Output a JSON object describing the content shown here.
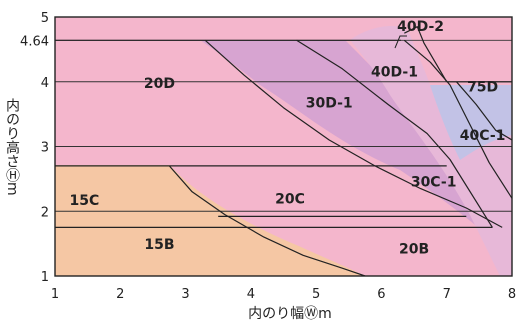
{
  "chart_data": {
    "type": "area",
    "xlabel": "内のり幅Ⓦm",
    "ylabel": "内のり高さⒽm",
    "xlim": [
      1,
      8
    ],
    "ylim": [
      1,
      5
    ],
    "x_ticks": [
      "1",
      "2",
      "3",
      "4",
      "5",
      "6",
      "7",
      "8"
    ],
    "y_ticks": [
      "1",
      "2",
      "3",
      "4",
      "4.64",
      "5"
    ],
    "grid": "horizontal",
    "regions": [
      {
        "label": "15C",
        "color": "#f5c7a4",
        "label_at": [
          1.45,
          2.1
        ]
      },
      {
        "label": "15B",
        "color": "#f5c7a4",
        "label_at": [
          2.6,
          1.42
        ]
      },
      {
        "label": "20D",
        "color": "#f4b6cc",
        "label_at": [
          2.6,
          3.9
        ]
      },
      {
        "label": "20C",
        "color": "#f4b6cc",
        "label_at": [
          4.6,
          2.12
        ]
      },
      {
        "label": "20B",
        "color": "#f4b6cc",
        "label_at": [
          6.5,
          1.35
        ]
      },
      {
        "label": "30D-1",
        "color": "#d7a4d1",
        "label_at": [
          5.2,
          3.6
        ]
      },
      {
        "label": "30C-1",
        "color": "#d7a4d1",
        "label_at": [
          6.8,
          2.38
        ]
      },
      {
        "label": "40D-1",
        "color": "#e7b8d8",
        "label_at": [
          6.2,
          4.08
        ]
      },
      {
        "label": "40C-1",
        "color": "#e7b8d8",
        "label_at": [
          7.55,
          3.1
        ]
      },
      {
        "label": "75D",
        "color": "#c2c2e6",
        "label_at": [
          7.55,
          3.85
        ]
      },
      {
        "label": "40D-2",
        "color": "#e7b8d8",
        "label_at": [
          6.6,
          4.78
        ]
      }
    ],
    "boundaries": [
      {
        "name": "h-2.7",
        "points": [
          [
            1,
            2.7
          ],
          [
            7.0,
            2.7
          ]
        ]
      },
      {
        "name": "h-1.75",
        "points": [
          [
            1,
            1.75
          ],
          [
            7.7,
            1.75
          ]
        ]
      },
      {
        "name": "h-1.9",
        "points": [
          [
            3.5,
            1.92
          ],
          [
            7.3,
            1.92
          ]
        ]
      },
      {
        "name": "h-4.0",
        "points": [
          [
            7.0,
            4.0
          ],
          [
            8.0,
            4.0
          ]
        ]
      },
      {
        "name": "h-4.64",
        "points": [
          [
            1,
            4.64
          ],
          [
            6.3,
            4.64
          ]
        ]
      },
      {
        "name": "curve-15",
        "points": [
          [
            2.75,
            2.7
          ],
          [
            3.1,
            2.3
          ],
          [
            3.6,
            1.95
          ],
          [
            4.2,
            1.6
          ],
          [
            4.8,
            1.32
          ],
          [
            5.4,
            1.12
          ],
          [
            5.75,
            1.0
          ]
        ]
      },
      {
        "name": "curve-20",
        "points": [
          [
            3.3,
            4.64
          ],
          [
            3.9,
            4.1
          ],
          [
            4.5,
            3.6
          ],
          [
            5.2,
            3.1
          ],
          [
            5.9,
            2.7
          ],
          [
            6.6,
            2.35
          ],
          [
            7.3,
            2.05
          ],
          [
            7.85,
            1.75
          ]
        ]
      },
      {
        "name": "curve-30",
        "points": [
          [
            4.7,
            4.64
          ],
          [
            5.4,
            4.2
          ],
          [
            6.1,
            3.65
          ],
          [
            6.7,
            3.2
          ],
          [
            7.05,
            2.8
          ],
          [
            7.7,
            1.75
          ]
        ]
      },
      {
        "name": "curve-40",
        "points": [
          [
            6.35,
            4.64
          ],
          [
            6.75,
            4.3
          ],
          [
            7.05,
            3.95
          ],
          [
            7.3,
            3.45
          ],
          [
            7.65,
            2.75
          ],
          [
            8.0,
            2.2
          ]
        ]
      },
      {
        "name": "curve-40D2",
        "points": [
          [
            6.35,
            4.75
          ],
          [
            6.55,
            4.85
          ],
          [
            6.65,
            4.6
          ],
          [
            7.0,
            4.0
          ]
        ]
      },
      {
        "name": "curve-75",
        "points": [
          [
            7.15,
            4.0
          ],
          [
            7.45,
            3.65
          ],
          [
            7.75,
            3.25
          ],
          [
            8.0,
            3.1
          ]
        ]
      }
    ]
  }
}
